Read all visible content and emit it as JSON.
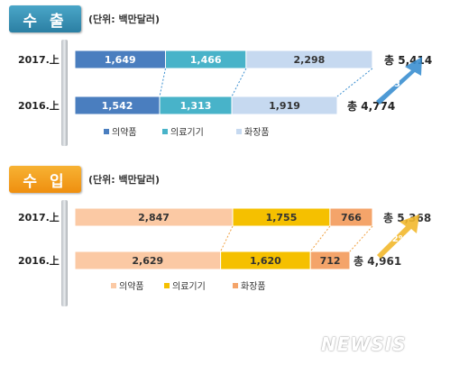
{
  "chart_data": [
    {
      "type": "bar",
      "orientation": "horizontal",
      "stacked": true,
      "title": "수 출",
      "unit_label": "(단위: 백만달러)",
      "categories": [
        "2017.上",
        "2016.上"
      ],
      "series": [
        {
          "name": "의약품",
          "values": [
            1649,
            1542
          ],
          "labels": [
            "1,649",
            "1,542"
          ],
          "color": "#4a7ebf"
        },
        {
          "name": "의료기기",
          "values": [
            1466,
            1313
          ],
          "labels": [
            "1,466",
            "1,313"
          ],
          "color": "#48b3c9"
        },
        {
          "name": "화장품",
          "values": [
            2298,
            1919
          ],
          "labels": [
            "2,298",
            "1,919"
          ],
          "color": "#c6d9f0"
        }
      ],
      "totals": [
        "총 5,414",
        "총 4,774"
      ],
      "growth": "13.4%",
      "growth_color": "#3b8fd0",
      "legend_position": "bottom"
    },
    {
      "type": "bar",
      "orientation": "horizontal",
      "stacked": true,
      "title": "수 입",
      "unit_label": "(단위: 백만달러)",
      "categories": [
        "2017.上",
        "2016.上"
      ],
      "series": [
        {
          "name": "의약품",
          "values": [
            2847,
            2629
          ],
          "labels": [
            "2,847",
            "2,629"
          ],
          "color": "#fbc9a4"
        },
        {
          "name": "의료기기",
          "values": [
            1755,
            1620
          ],
          "labels": [
            "1,755",
            "1,620"
          ],
          "color": "#f5c000"
        },
        {
          "name": "화장품",
          "values": [
            766,
            712
          ],
          "labels": [
            "766",
            "712"
          ],
          "color": "#f4a46a"
        }
      ],
      "totals": [
        "총 5,368",
        "총 4,961"
      ],
      "growth": "8.2%",
      "growth_color": "#f2b82c",
      "legend_position": "bottom"
    }
  ],
  "watermark": "NEWSIS"
}
